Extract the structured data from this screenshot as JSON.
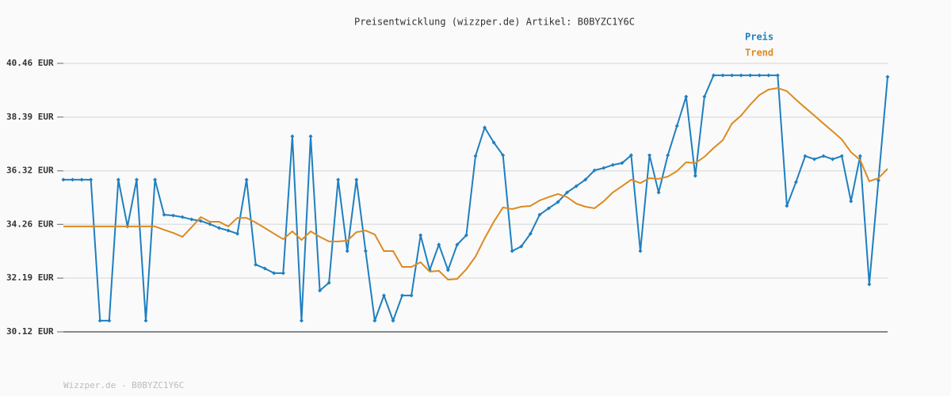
{
  "chart_data": {
    "type": "line",
    "title": "Preisentwicklung (wizzper.de) Artikel: B0BYZC1Y6C",
    "source": "Wizzper.de - B0BYZC1Y6C",
    "ylim": [
      30.12,
      40.46
    ],
    "yticks": [
      {
        "value": 30.12,
        "label": "30.12 EUR"
      },
      {
        "value": 32.19,
        "label": "32.19 EUR"
      },
      {
        "value": 34.26,
        "label": "34.26 EUR"
      },
      {
        "value": 36.32,
        "label": "36.32 EUR"
      },
      {
        "value": 38.39,
        "label": "38.39 EUR"
      },
      {
        "value": 40.46,
        "label": "40.46 EUR"
      }
    ],
    "grid": true,
    "legend": "top-right",
    "series": [
      {
        "name": "Preis",
        "color": "#1f7fc0",
        "markers": true,
        "values": [
          35.98,
          35.98,
          35.98,
          35.98,
          30.55,
          30.55,
          35.98,
          34.18,
          35.98,
          30.55,
          35.98,
          34.63,
          34.6,
          34.54,
          34.45,
          34.39,
          34.27,
          34.12,
          34.02,
          33.9,
          35.98,
          32.71,
          32.56,
          32.38,
          32.38,
          37.65,
          30.55,
          37.65,
          31.71,
          32.01,
          35.98,
          33.23,
          35.98,
          33.23,
          30.55,
          31.52,
          30.55,
          31.52,
          31.52,
          33.84,
          32.5,
          33.48,
          32.5,
          33.48,
          33.84,
          36.89,
          37.99,
          37.41,
          36.92,
          33.23,
          33.41,
          33.9,
          34.63,
          34.88,
          35.12,
          35.49,
          35.73,
          35.98,
          36.34,
          36.43,
          36.55,
          36.62,
          36.92,
          33.23,
          36.92,
          35.49,
          36.92,
          38.05,
          39.18,
          36.13,
          39.18,
          40.0,
          40.0,
          40.0,
          40.0,
          40.0,
          40.0,
          40.0,
          40.0,
          34.97,
          35.89,
          36.89,
          36.77,
          36.89,
          36.77,
          36.89,
          35.15,
          36.89,
          31.95,
          35.95,
          39.94
        ]
      },
      {
        "name": "Trend",
        "color": "#dd8a22",
        "markers": false,
        "values": [
          34.18,
          34.18,
          34.18,
          34.18,
          34.18,
          34.18,
          34.18,
          34.18,
          34.18,
          34.18,
          34.18,
          34.05,
          33.93,
          33.78,
          34.15,
          34.54,
          34.36,
          34.36,
          34.18,
          34.51,
          34.51,
          34.33,
          34.12,
          33.9,
          33.69,
          33.99,
          33.66,
          33.99,
          33.78,
          33.6,
          33.6,
          33.63,
          33.96,
          34.02,
          33.87,
          33.23,
          33.23,
          32.62,
          32.62,
          32.8,
          32.44,
          32.47,
          32.13,
          32.16,
          32.53,
          33.02,
          33.72,
          34.36,
          34.91,
          34.85,
          34.94,
          34.97,
          35.18,
          35.31,
          35.43,
          35.31,
          35.06,
          34.94,
          34.88,
          35.15,
          35.49,
          35.73,
          35.98,
          35.85,
          36.04,
          36.01,
          36.1,
          36.31,
          36.65,
          36.62,
          36.86,
          37.2,
          37.5,
          38.14,
          38.45,
          38.87,
          39.24,
          39.45,
          39.51,
          39.39,
          39.06,
          38.75,
          38.45,
          38.14,
          37.84,
          37.53,
          37.04,
          36.74,
          35.92,
          36.04,
          36.4
        ]
      }
    ]
  }
}
